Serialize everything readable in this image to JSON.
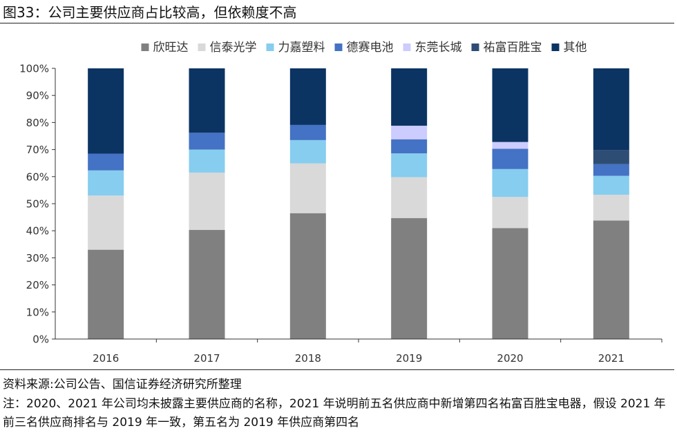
{
  "figure": {
    "title": "图33：公司主要供应商占比较高，但依赖度不高",
    "source": "资料来源:公司公告、国信证券经济研究所整理",
    "note": "注：2020、2021 年公司均未披露主要供应商的名称，2021 年说明前五名供应商中新增第四名祐富百胜宝电器，假设 2021 年前三名供应商排名与 2019 年一致，第五名为 2019 年供应商第四名"
  },
  "chart_data": {
    "type": "bar",
    "stacked": true,
    "title": "",
    "xlabel": "",
    "ylabel": "",
    "ylim": [
      0,
      100
    ],
    "y_ticks": [
      "0%",
      "10%",
      "20%",
      "30%",
      "40%",
      "50%",
      "60%",
      "70%",
      "80%",
      "90%",
      "100%"
    ],
    "categories": [
      "2016",
      "2017",
      "2018",
      "2019",
      "2020",
      "2021"
    ],
    "legend_position": "top",
    "series": [
      {
        "name": "欣旺达",
        "color": "#808080",
        "values": [
          33,
          40.3,
          46.5,
          44.7,
          41,
          43.8
        ]
      },
      {
        "name": "信泰光学",
        "color": "#d9d9d9",
        "values": [
          20,
          21.2,
          18.4,
          15.1,
          11.5,
          9.5
        ]
      },
      {
        "name": "力嘉塑料",
        "color": "#86cdef",
        "values": [
          9.3,
          8.5,
          8.6,
          8.8,
          10.3,
          7
        ]
      },
      {
        "name": "德赛电池",
        "color": "#4472c4",
        "values": [
          6.2,
          6.2,
          5.6,
          5.2,
          7.5,
          4.3
        ]
      },
      {
        "name": "东莞长城",
        "color": "#ccccff",
        "values": [
          0,
          0,
          0,
          5,
          2.5,
          0
        ]
      },
      {
        "name": "祐富百胜宝",
        "color": "#2e4d75",
        "values": [
          0,
          0,
          0,
          0,
          0,
          5.2
        ]
      },
      {
        "name": "其他",
        "color": "#0b3463",
        "values": [
          31.5,
          23.8,
          20.9,
          21.2,
          27.2,
          30.2
        ]
      }
    ]
  }
}
